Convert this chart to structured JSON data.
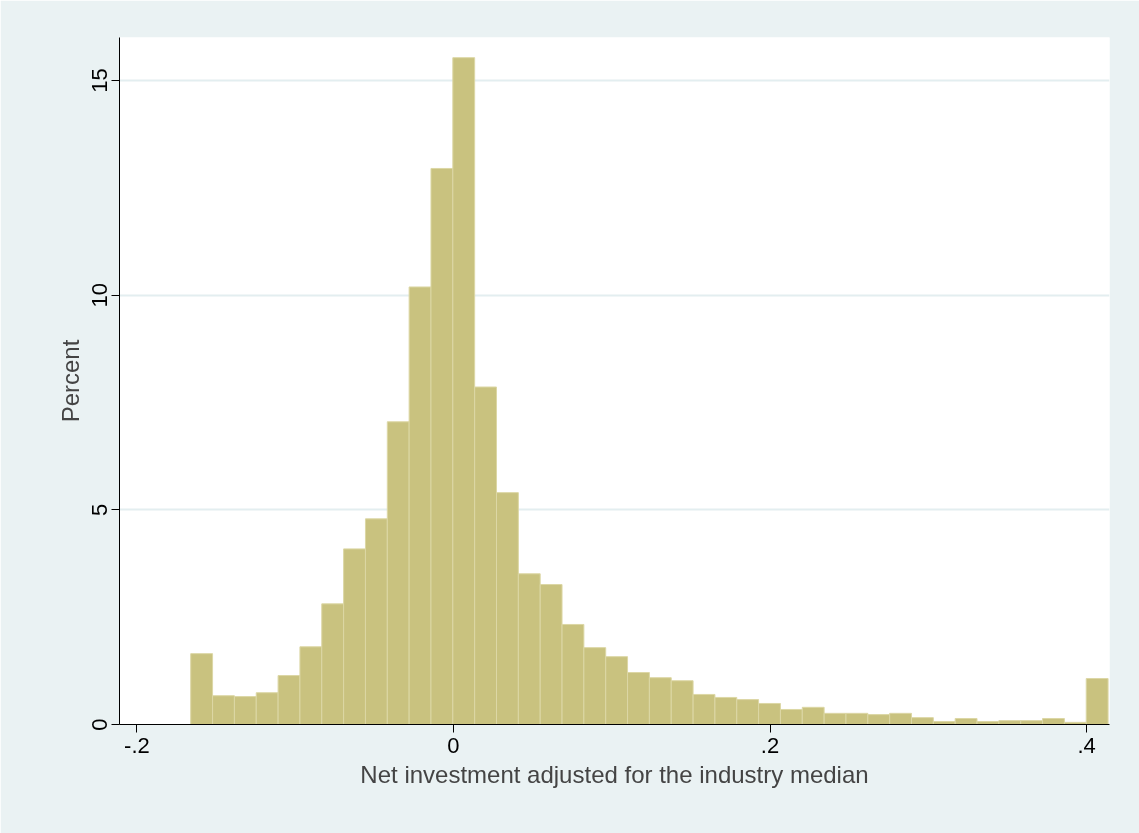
{
  "chart_data": {
    "type": "histogram",
    "xlabel": "Net investment adjusted for the industry median",
    "ylabel": "Percent",
    "color": "#c9c27f",
    "bins": [
      -0.166,
      -0.1522,
      -0.1384,
      -0.1246,
      -0.1108,
      -0.097,
      -0.0832,
      -0.0694,
      -0.0556,
      -0.0418,
      -0.028,
      -0.0142,
      -0.0004,
      0.0134,
      0.0272,
      0.041,
      0.0548,
      0.0686,
      0.0824,
      0.0962,
      0.11,
      0.1238,
      0.1376,
      0.1514,
      0.1652,
      0.179,
      0.1928,
      0.2066,
      0.2204,
      0.2342,
      0.248,
      0.2618,
      0.2756,
      0.2894,
      0.3032,
      0.317,
      0.3308,
      0.3446,
      0.3584,
      0.3722,
      0.386,
      0.3998,
      0.4136
    ],
    "values": [
      1.65,
      0.67,
      0.65,
      0.74,
      1.14,
      1.81,
      2.81,
      4.09,
      4.79,
      7.05,
      10.19,
      12.95,
      15.53,
      7.86,
      5.4,
      3.51,
      3.26,
      2.33,
      1.79,
      1.58,
      1.21,
      1.09,
      1.02,
      0.7,
      0.63,
      0.58,
      0.49,
      0.35,
      0.4,
      0.26,
      0.26,
      0.23,
      0.26,
      0.16,
      0.07,
      0.14,
      0.07,
      0.09,
      0.09,
      0.14,
      0.05,
      1.07
    ],
    "xlim": [
      -0.211,
      0.4145
    ],
    "ylim": [
      0,
      16
    ],
    "xticks": [
      {
        "value": -0.2,
        "label": "-.2"
      },
      {
        "value": 0,
        "label": "0"
      },
      {
        "value": 0.2,
        "label": ".2"
      },
      {
        "value": 0.4,
        "label": ".4"
      }
    ],
    "yticks": [
      0,
      5,
      10,
      15
    ],
    "grid": "y"
  }
}
